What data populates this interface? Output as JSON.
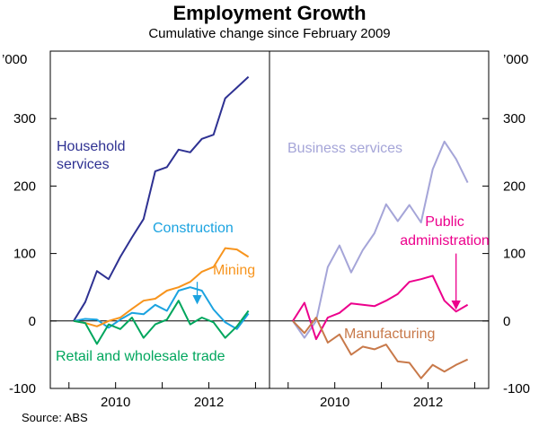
{
  "title": "Employment Growth",
  "subtitle": "Cumulative change since February 2009",
  "source": "Source: ABS",
  "chart_data": {
    "type": "line",
    "unit": "’000",
    "ylim": [
      -100,
      400
    ],
    "yticks": [
      -100,
      0,
      100,
      200,
      300
    ],
    "ytick_labels": [
      "-100",
      "0",
      "100",
      "200",
      "300"
    ],
    "xlim": [
      2008.6,
      2013.3
    ],
    "xticks": [
      2009,
      2010,
      2011,
      2012,
      2013
    ],
    "xlabels": [
      {
        "value": 2010,
        "text": "2010"
      },
      {
        "value": 2012,
        "text": "2012"
      }
    ],
    "grid": false,
    "panels": [
      {
        "name": "left",
        "series": [
          {
            "name": "Household services",
            "label_lines": [
              "Household",
              "services"
            ],
            "color": "#2e3192",
            "x": [
              2009.1,
              2009.35,
              2009.6,
              2009.85,
              2010.1,
              2010.35,
              2010.6,
              2010.85,
              2011.1,
              2011.35,
              2011.6,
              2011.85,
              2012.1,
              2012.35,
              2012.6,
              2012.85
            ],
            "values": [
              0,
              28,
              74,
              62,
              95,
              124,
              151,
              222,
              228,
              254,
              250,
              270,
              276,
              330,
              346,
              362
            ]
          },
          {
            "name": "Construction",
            "label_lines": [
              "Construction"
            ],
            "color": "#1ba3e0",
            "x": [
              2009.1,
              2009.35,
              2009.6,
              2009.85,
              2010.1,
              2010.35,
              2010.6,
              2010.85,
              2011.1,
              2011.35,
              2011.6,
              2011.85,
              2012.1,
              2012.35,
              2012.6,
              2012.85
            ],
            "values": [
              0,
              3,
              2,
              -10,
              2,
              12,
              10,
              24,
              15,
              45,
              50,
              45,
              17,
              -2,
              -12,
              11
            ]
          },
          {
            "name": "Mining",
            "label_lines": [
              "Mining"
            ],
            "color": "#f7941d",
            "x": [
              2009.1,
              2009.35,
              2009.6,
              2009.85,
              2010.1,
              2010.35,
              2010.6,
              2010.85,
              2011.1,
              2011.35,
              2011.6,
              2011.85,
              2012.1,
              2012.35,
              2012.6,
              2012.85
            ],
            "values": [
              0,
              -3,
              -8,
              0,
              5,
              18,
              30,
              33,
              45,
              50,
              58,
              73,
              80,
              108,
              106,
              95
            ]
          },
          {
            "name": "Retail and wholesale trade",
            "label_lines": [
              "Retail and wholesale trade"
            ],
            "color": "#00a65d",
            "x": [
              2009.1,
              2009.35,
              2009.6,
              2009.85,
              2010.1,
              2010.35,
              2010.6,
              2010.85,
              2011.1,
              2011.35,
              2011.6,
              2011.85,
              2012.1,
              2012.35,
              2012.6,
              2012.85
            ],
            "values": [
              0,
              -3,
              -34,
              -5,
              -12,
              5,
              -25,
              -5,
              2,
              30,
              -5,
              5,
              -2,
              -25,
              -8,
              15
            ]
          }
        ],
        "annotations": [
          {
            "type": "arrow",
            "from": [
              2011.75,
              58
            ],
            "to": [
              2011.75,
              28
            ],
            "color": "#1ba3e0"
          }
        ]
      },
      {
        "name": "right",
        "series": [
          {
            "name": "Business services",
            "label_lines": [
              "Business services"
            ],
            "color": "#a5a5d8",
            "x": [
              2009.1,
              2009.35,
              2009.6,
              2009.85,
              2010.1,
              2010.35,
              2010.6,
              2010.85,
              2011.1,
              2011.35,
              2011.6,
              2011.85,
              2012.1,
              2012.35,
              2012.6,
              2012.85
            ],
            "values": [
              0,
              -25,
              0,
              80,
              112,
              72,
              105,
              130,
              173,
              148,
              172,
              146,
              225,
              266,
              240,
              205
            ]
          },
          {
            "name": "Public administration",
            "label_lines": [
              "Public",
              "administration"
            ],
            "color": "#ec008c",
            "x": [
              2009.1,
              2009.35,
              2009.6,
              2009.85,
              2010.1,
              2010.35,
              2010.6,
              2010.85,
              2011.1,
              2011.35,
              2011.6,
              2011.85,
              2012.1,
              2012.35,
              2012.6,
              2012.85
            ],
            "values": [
              0,
              27,
              -27,
              5,
              12,
              26,
              24,
              22,
              30,
              40,
              58,
              62,
              67,
              30,
              14,
              24
            ]
          },
          {
            "name": "Manufacturing",
            "label_lines": [
              "Manufacturing"
            ],
            "color": "#c8794a",
            "x": [
              2009.1,
              2009.35,
              2009.6,
              2009.85,
              2010.1,
              2010.35,
              2010.6,
              2010.85,
              2011.1,
              2011.35,
              2011.6,
              2011.85,
              2012.1,
              2012.35,
              2012.6,
              2012.85
            ],
            "values": [
              0,
              -18,
              5,
              -32,
              -20,
              -50,
              -38,
              -42,
              -35,
              -60,
              -62,
              -85,
              -65,
              -75,
              -65,
              -57
            ]
          }
        ],
        "annotations": [
          {
            "type": "arrow",
            "from": [
              2012.6,
              100
            ],
            "to": [
              2012.6,
              20
            ],
            "color": "#ec008c"
          }
        ]
      }
    ]
  }
}
